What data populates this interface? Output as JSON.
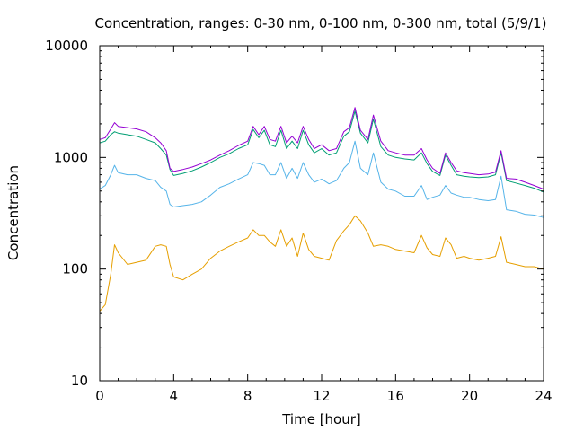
{
  "chart_data": {
    "type": "line",
    "title": "Concentration, ranges: 0-30 nm, 0-100 nm, 0-300 nm, total (5/9/1)",
    "xlabel": "Time [hour]",
    "ylabel": "Concentration",
    "xlim": [
      0,
      24
    ],
    "ylim": [
      10,
      10000
    ],
    "yscale": "log",
    "grid": false,
    "legend": "none",
    "x_ticks": [
      "0",
      "4",
      "8",
      "12",
      "16",
      "20",
      "24"
    ],
    "y_ticks": [
      "10",
      "100",
      "1000",
      "10000"
    ],
    "x": [
      0,
      0.3,
      0.6,
      0.8,
      1,
      1.5,
      2,
      2.5,
      3,
      3.3,
      3.6,
      3.8,
      4,
      4.5,
      5,
      5.5,
      6,
      6.5,
      7,
      7.5,
      8,
      8.3,
      8.6,
      8.9,
      9.2,
      9.5,
      9.8,
      10.1,
      10.4,
      10.7,
      11,
      11.3,
      11.6,
      12,
      12.4,
      12.8,
      13.2,
      13.5,
      13.8,
      14.1,
      14.5,
      14.8,
      15.2,
      15.6,
      16,
      16.5,
      17,
      17.4,
      17.7,
      18,
      18.4,
      18.7,
      19,
      19.3,
      19.7,
      20,
      20.5,
      21,
      21.4,
      21.7,
      22,
      22.5,
      23,
      23.5,
      24
    ],
    "series": [
      {
        "color": "#e69f00",
        "values": [
          42,
          48,
          90,
          165,
          140,
          110,
          115,
          120,
          160,
          165,
          160,
          110,
          85,
          80,
          90,
          100,
          125,
          145,
          160,
          175,
          190,
          225,
          200,
          200,
          175,
          160,
          225,
          160,
          190,
          130,
          210,
          150,
          130,
          125,
          120,
          180,
          220,
          250,
          300,
          270,
          210,
          160,
          165,
          160,
          150,
          145,
          140,
          200,
          155,
          135,
          130,
          190,
          165,
          125,
          130,
          125,
          120,
          125,
          130,
          195,
          115,
          110,
          105,
          105,
          100
        ]
      },
      {
        "color": "#56b4e9",
        "values": [
          520,
          560,
          700,
          850,
          730,
          700,
          700,
          650,
          620,
          540,
          500,
          380,
          360,
          370,
          380,
          400,
          460,
          540,
          580,
          640,
          700,
          900,
          880,
          850,
          700,
          700,
          900,
          650,
          800,
          650,
          900,
          700,
          600,
          640,
          580,
          620,
          800,
          900,
          1400,
          800,
          700,
          1100,
          600,
          520,
          500,
          450,
          450,
          560,
          420,
          440,
          460,
          560,
          480,
          460,
          440,
          440,
          420,
          410,
          420,
          680,
          340,
          330,
          310,
          305,
          290
        ]
      },
      {
        "color": "#009e73",
        "values": [
          1350,
          1400,
          1600,
          1700,
          1650,
          1600,
          1550,
          1450,
          1350,
          1200,
          1050,
          780,
          690,
          720,
          760,
          820,
          900,
          1000,
          1080,
          1200,
          1300,
          1780,
          1500,
          1750,
          1300,
          1250,
          1750,
          1200,
          1400,
          1200,
          1750,
          1300,
          1100,
          1200,
          1050,
          1100,
          1550,
          1700,
          2600,
          1650,
          1350,
          2200,
          1250,
          1050,
          1000,
          970,
          950,
          1100,
          880,
          750,
          690,
          1050,
          850,
          700,
          680,
          670,
          660,
          670,
          700,
          1100,
          620,
          590,
          560,
          530,
          490
        ]
      },
      {
        "color": "#9400d3",
        "values": [
          1450,
          1500,
          1800,
          2050,
          1900,
          1850,
          1800,
          1700,
          1500,
          1350,
          1150,
          800,
          750,
          780,
          820,
          880,
          950,
          1050,
          1150,
          1280,
          1400,
          1900,
          1600,
          1900,
          1450,
          1400,
          1900,
          1350,
          1550,
          1350,
          1900,
          1450,
          1200,
          1300,
          1150,
          1200,
          1700,
          1850,
          2800,
          1750,
          1450,
          2400,
          1400,
          1150,
          1100,
          1050,
          1050,
          1200,
          950,
          800,
          720,
          1100,
          900,
          760,
          730,
          720,
          700,
          710,
          740,
          1150,
          650,
          640,
          600,
          560,
          520
        ]
      }
    ]
  }
}
